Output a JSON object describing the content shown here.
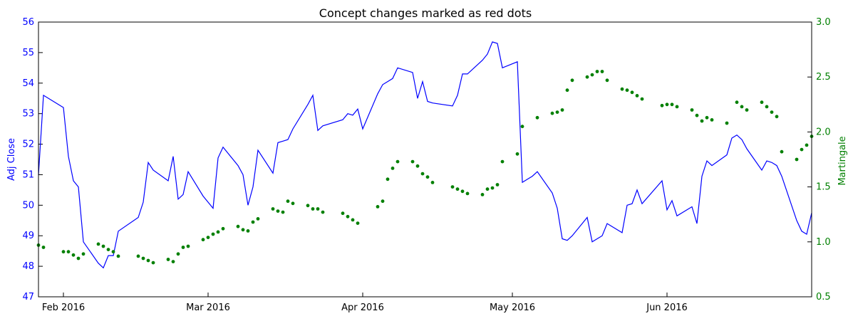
{
  "chart_data": {
    "type": "line",
    "title": "Concept changes marked as red dots",
    "xlabel": "",
    "ylabel_left": "Adj Close",
    "ylabel_right": "Martingale",
    "x_range": [
      "2016-01-27",
      "2016-06-30"
    ],
    "ylim_left": [
      47,
      56
    ],
    "ylim_right": [
      0.5,
      3.0
    ],
    "x_ticks": [
      {
        "date": "2016-02-01",
        "label": "Feb 2016"
      },
      {
        "date": "2016-03-01",
        "label": "Mar 2016"
      },
      {
        "date": "2016-04-01",
        "label": "Apr 2016"
      },
      {
        "date": "2016-05-01",
        "label": "May 2016"
      },
      {
        "date": "2016-06-01",
        "label": "Jun 2016"
      }
    ],
    "y_ticks_left": [
      "47",
      "48",
      "49",
      "50",
      "51",
      "52",
      "53",
      "54",
      "55",
      "56"
    ],
    "y_ticks_right": [
      "0.5",
      "1.0",
      "1.5",
      "2.0",
      "2.5",
      "3.0"
    ],
    "grid": false,
    "colors": {
      "left": "#0000ff",
      "right": "#008000",
      "axis": "#000000"
    },
    "series": [
      {
        "axis": "left",
        "style": "line",
        "points": [
          [
            "2016-01-27",
            51.0
          ],
          [
            "2016-01-28",
            53.6
          ],
          [
            "2016-02-01",
            53.2
          ],
          [
            "2016-02-02",
            51.6
          ],
          [
            "2016-02-03",
            50.8
          ],
          [
            "2016-02-04",
            50.6
          ],
          [
            "2016-02-05",
            48.8
          ],
          [
            "2016-02-08",
            48.1
          ],
          [
            "2016-02-09",
            47.95
          ],
          [
            "2016-02-10",
            48.35
          ],
          [
            "2016-02-11",
            48.35
          ],
          [
            "2016-02-12",
            49.15
          ],
          [
            "2016-02-16",
            49.6
          ],
          [
            "2016-02-17",
            50.1
          ],
          [
            "2016-02-18",
            51.4
          ],
          [
            "2016-02-19",
            51.15
          ],
          [
            "2016-02-22",
            50.8
          ],
          [
            "2016-02-23",
            51.6
          ],
          [
            "2016-02-24",
            50.2
          ],
          [
            "2016-02-25",
            50.35
          ],
          [
            "2016-02-26",
            51.1
          ],
          [
            "2016-02-29",
            50.3
          ],
          [
            "2016-03-02",
            49.9
          ],
          [
            "2016-03-03",
            51.55
          ],
          [
            "2016-03-04",
            51.9
          ],
          [
            "2016-03-07",
            51.3
          ],
          [
            "2016-03-08",
            51.0
          ],
          [
            "2016-03-09",
            50.0
          ],
          [
            "2016-03-10",
            50.6
          ],
          [
            "2016-03-11",
            51.8
          ],
          [
            "2016-03-14",
            51.05
          ],
          [
            "2016-03-15",
            52.05
          ],
          [
            "2016-03-16",
            52.1
          ],
          [
            "2016-03-17",
            52.15
          ],
          [
            "2016-03-18",
            52.5
          ],
          [
            "2016-03-21",
            53.3
          ],
          [
            "2016-03-22",
            53.6
          ],
          [
            "2016-03-23",
            52.45
          ],
          [
            "2016-03-24",
            52.6
          ],
          [
            "2016-03-28",
            52.8
          ],
          [
            "2016-03-29",
            53.0
          ],
          [
            "2016-03-30",
            52.95
          ],
          [
            "2016-03-31",
            53.15
          ],
          [
            "2016-04-01",
            52.5
          ],
          [
            "2016-04-04",
            53.65
          ],
          [
            "2016-04-05",
            53.95
          ],
          [
            "2016-04-06",
            54.05
          ],
          [
            "2016-04-07",
            54.15
          ],
          [
            "2016-04-08",
            54.5
          ],
          [
            "2016-04-11",
            54.35
          ],
          [
            "2016-04-12",
            53.5
          ],
          [
            "2016-04-13",
            54.05
          ],
          [
            "2016-04-14",
            53.4
          ],
          [
            "2016-04-15",
            53.35
          ],
          [
            "2016-04-19",
            53.25
          ],
          [
            "2016-04-20",
            53.6
          ],
          [
            "2016-04-21",
            54.3
          ],
          [
            "2016-04-22",
            54.3
          ],
          [
            "2016-04-25",
            54.75
          ],
          [
            "2016-04-26",
            54.95
          ],
          [
            "2016-04-27",
            55.35
          ],
          [
            "2016-04-28",
            55.3
          ],
          [
            "2016-04-29",
            54.5
          ],
          [
            "2016-05-02",
            54.7
          ],
          [
            "2016-05-03",
            50.75
          ],
          [
            "2016-05-04",
            50.85
          ],
          [
            "2016-05-05",
            50.95
          ],
          [
            "2016-05-06",
            51.1
          ],
          [
            "2016-05-09",
            50.4
          ],
          [
            "2016-05-10",
            49.9
          ],
          [
            "2016-05-11",
            48.9
          ],
          [
            "2016-05-12",
            48.85
          ],
          [
            "2016-05-13",
            49.0
          ],
          [
            "2016-05-16",
            49.6
          ],
          [
            "2016-05-17",
            48.8
          ],
          [
            "2016-05-18",
            48.9
          ],
          [
            "2016-05-19",
            49.0
          ],
          [
            "2016-05-20",
            49.4
          ],
          [
            "2016-05-23",
            49.1
          ],
          [
            "2016-05-24",
            50.0
          ],
          [
            "2016-05-25",
            50.05
          ],
          [
            "2016-05-26",
            50.5
          ],
          [
            "2016-05-27",
            50.05
          ],
          [
            "2016-05-31",
            50.8
          ],
          [
            "2016-06-01",
            49.85
          ],
          [
            "2016-06-02",
            50.15
          ],
          [
            "2016-06-03",
            49.65
          ],
          [
            "2016-06-06",
            49.95
          ],
          [
            "2016-06-07",
            49.4
          ],
          [
            "2016-06-08",
            50.95
          ],
          [
            "2016-06-09",
            51.45
          ],
          [
            "2016-06-10",
            51.3
          ],
          [
            "2016-06-13",
            51.65
          ],
          [
            "2016-06-14",
            52.2
          ],
          [
            "2016-06-15",
            52.3
          ],
          [
            "2016-06-16",
            52.15
          ],
          [
            "2016-06-17",
            51.85
          ],
          [
            "2016-06-20",
            51.15
          ],
          [
            "2016-06-21",
            51.45
          ],
          [
            "2016-06-22",
            51.4
          ],
          [
            "2016-06-23",
            51.3
          ],
          [
            "2016-06-24",
            50.95
          ],
          [
            "2016-06-27",
            49.5
          ],
          [
            "2016-06-28",
            49.15
          ],
          [
            "2016-06-29",
            49.05
          ],
          [
            "2016-06-30",
            49.75
          ]
        ]
      },
      {
        "axis": "right",
        "style": "dots",
        "points": [
          [
            "2016-01-27",
            0.97
          ],
          [
            "2016-01-28",
            0.95
          ],
          [
            "2016-02-01",
            0.91
          ],
          [
            "2016-02-02",
            0.91
          ],
          [
            "2016-02-03",
            0.88
          ],
          [
            "2016-02-04",
            0.85
          ],
          [
            "2016-02-05",
            0.89
          ],
          [
            "2016-02-08",
            0.98
          ],
          [
            "2016-02-09",
            0.96
          ],
          [
            "2016-02-10",
            0.93
          ],
          [
            "2016-02-11",
            0.91
          ],
          [
            "2016-02-12",
            0.87
          ],
          [
            "2016-02-16",
            0.87
          ],
          [
            "2016-02-17",
            0.85
          ],
          [
            "2016-02-18",
            0.83
          ],
          [
            "2016-02-19",
            0.81
          ],
          [
            "2016-02-22",
            0.84
          ],
          [
            "2016-02-23",
            0.82
          ],
          [
            "2016-02-24",
            0.89
          ],
          [
            "2016-02-25",
            0.95
          ],
          [
            "2016-02-26",
            0.96
          ],
          [
            "2016-02-29",
            1.02
          ],
          [
            "2016-03-01",
            1.04
          ],
          [
            "2016-03-02",
            1.07
          ],
          [
            "2016-03-03",
            1.09
          ],
          [
            "2016-03-04",
            1.12
          ],
          [
            "2016-03-07",
            1.14
          ],
          [
            "2016-03-08",
            1.11
          ],
          [
            "2016-03-09",
            1.1
          ],
          [
            "2016-03-10",
            1.18
          ],
          [
            "2016-03-11",
            1.21
          ],
          [
            "2016-03-14",
            1.3
          ],
          [
            "2016-03-15",
            1.28
          ],
          [
            "2016-03-16",
            1.27
          ],
          [
            "2016-03-17",
            1.37
          ],
          [
            "2016-03-18",
            1.35
          ],
          [
            "2016-03-21",
            1.33
          ],
          [
            "2016-03-22",
            1.3
          ],
          [
            "2016-03-23",
            1.3
          ],
          [
            "2016-03-24",
            1.27
          ],
          [
            "2016-03-28",
            1.26
          ],
          [
            "2016-03-29",
            1.23
          ],
          [
            "2016-03-30",
            1.2
          ],
          [
            "2016-03-31",
            1.17
          ],
          [
            "2016-04-04",
            1.32
          ],
          [
            "2016-04-05",
            1.37
          ],
          [
            "2016-04-06",
            1.57
          ],
          [
            "2016-04-07",
            1.67
          ],
          [
            "2016-04-08",
            1.73
          ],
          [
            "2016-04-11",
            1.73
          ],
          [
            "2016-04-12",
            1.69
          ],
          [
            "2016-04-13",
            1.62
          ],
          [
            "2016-04-14",
            1.59
          ],
          [
            "2016-04-15",
            1.54
          ],
          [
            "2016-04-19",
            1.5
          ],
          [
            "2016-04-20",
            1.48
          ],
          [
            "2016-04-21",
            1.46
          ],
          [
            "2016-04-22",
            1.44
          ],
          [
            "2016-04-25",
            1.43
          ],
          [
            "2016-04-26",
            1.48
          ],
          [
            "2016-04-27",
            1.49
          ],
          [
            "2016-04-28",
            1.52
          ],
          [
            "2016-04-29",
            1.73
          ],
          [
            "2016-05-02",
            1.8
          ],
          [
            "2016-05-03",
            2.05
          ],
          [
            "2016-05-06",
            2.13
          ],
          [
            "2016-05-09",
            2.17
          ],
          [
            "2016-05-10",
            2.18
          ],
          [
            "2016-05-11",
            2.2
          ],
          [
            "2016-05-12",
            2.38
          ],
          [
            "2016-05-13",
            2.47
          ],
          [
            "2016-05-16",
            2.5
          ],
          [
            "2016-05-17",
            2.52
          ],
          [
            "2016-05-18",
            2.55
          ],
          [
            "2016-05-19",
            2.55
          ],
          [
            "2016-05-20",
            2.47
          ],
          [
            "2016-05-23",
            2.39
          ],
          [
            "2016-05-24",
            2.38
          ],
          [
            "2016-05-25",
            2.36
          ],
          [
            "2016-05-26",
            2.33
          ],
          [
            "2016-05-27",
            2.3
          ],
          [
            "2016-05-31",
            2.24
          ],
          [
            "2016-06-01",
            2.25
          ],
          [
            "2016-06-02",
            2.25
          ],
          [
            "2016-06-03",
            2.23
          ],
          [
            "2016-06-06",
            2.2
          ],
          [
            "2016-06-07",
            2.15
          ],
          [
            "2016-06-08",
            2.1
          ],
          [
            "2016-06-09",
            2.13
          ],
          [
            "2016-06-10",
            2.11
          ],
          [
            "2016-06-13",
            2.08
          ],
          [
            "2016-06-15",
            2.27
          ],
          [
            "2016-06-16",
            2.23
          ],
          [
            "2016-06-17",
            2.2
          ],
          [
            "2016-06-20",
            2.27
          ],
          [
            "2016-06-21",
            2.23
          ],
          [
            "2016-06-22",
            2.18
          ],
          [
            "2016-06-23",
            2.14
          ],
          [
            "2016-06-24",
            1.82
          ],
          [
            "2016-06-27",
            1.75
          ],
          [
            "2016-06-28",
            1.84
          ],
          [
            "2016-06-29",
            1.88
          ],
          [
            "2016-06-30",
            1.96
          ]
        ]
      }
    ]
  }
}
